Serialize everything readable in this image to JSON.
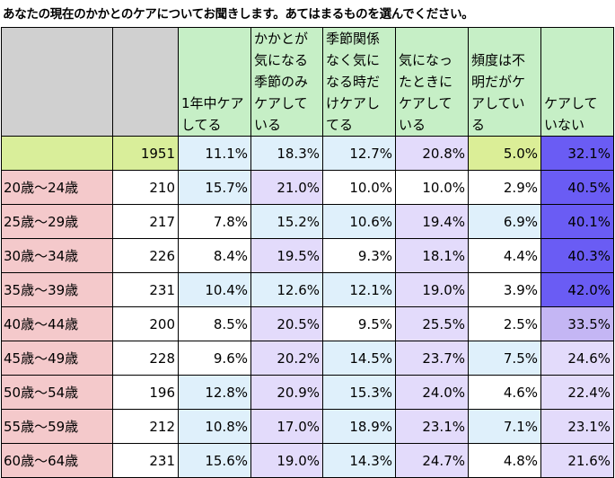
{
  "title": "あなたの現在のかかとのケアについてお聞きします。あてはまるものを選んでください。",
  "columns": [
    "",
    "",
    "1年中ケアしてる",
    "かかとが気になる季節のみケアしている",
    "季節関係なく気になる時だけケアしてる",
    "気になったときにケアしている",
    "頻度は不明だがケアしている",
    "ケアしていない"
  ],
  "colors": {
    "total_label": "#d9ee9a",
    "age_label": "#f4c9cb",
    "header_green": "#c6efc6",
    "light_blue": "#dff0fb",
    "light_purple": "#e3dbfb",
    "mid_purple": "#c4b6f4",
    "strong_purple": "#6a5cf4",
    "lime": "#dbee97",
    "white": "#ffffff"
  },
  "chart_data": {
    "type": "table",
    "title": "あなたの現在のかかとのケアについてお聞きします。あてはまるものを選んでください。",
    "rows": [
      {
        "label": "",
        "n": "1951",
        "values": [
          "11.1%",
          "18.3%",
          "12.7%",
          "20.8%",
          "5.0%",
          "32.1%"
        ]
      },
      {
        "label": "20歳～24歳",
        "n": "210",
        "values": [
          "15.7%",
          "21.0%",
          "10.0%",
          "10.0%",
          "2.9%",
          "40.5%"
        ]
      },
      {
        "label": "25歳～29歳",
        "n": "217",
        "values": [
          "7.8%",
          "15.2%",
          "10.6%",
          "19.4%",
          "6.9%",
          "40.1%"
        ]
      },
      {
        "label": "30歳～34歳",
        "n": "226",
        "values": [
          "8.4%",
          "19.5%",
          "9.3%",
          "18.1%",
          "4.4%",
          "40.3%"
        ]
      },
      {
        "label": "35歳～39歳",
        "n": "231",
        "values": [
          "10.4%",
          "12.6%",
          "12.1%",
          "19.0%",
          "3.9%",
          "42.0%"
        ]
      },
      {
        "label": "40歳～44歳",
        "n": "200",
        "values": [
          "8.5%",
          "20.5%",
          "9.5%",
          "25.5%",
          "2.5%",
          "33.5%"
        ]
      },
      {
        "label": "45歳～49歳",
        "n": "228",
        "values": [
          "9.6%",
          "20.2%",
          "14.5%",
          "23.7%",
          "7.5%",
          "24.6%"
        ]
      },
      {
        "label": "50歳～54歳",
        "n": "196",
        "values": [
          "12.8%",
          "20.9%",
          "15.3%",
          "24.0%",
          "4.6%",
          "22.4%"
        ]
      },
      {
        "label": "55歳～59歳",
        "n": "212",
        "values": [
          "10.8%",
          "17.0%",
          "18.9%",
          "23.1%",
          "7.1%",
          "23.1%"
        ]
      },
      {
        "label": "60歳～64歳",
        "n": "231",
        "values": [
          "15.6%",
          "19.0%",
          "14.3%",
          "24.7%",
          "4.8%",
          "21.6%"
        ]
      }
    ],
    "cell_colors": [
      [
        "light_blue",
        "light_blue",
        "light_blue",
        "light_purple",
        "lime",
        "strong_purple"
      ],
      [
        "light_blue",
        "light_purple",
        "white",
        "white",
        "white",
        "strong_purple"
      ],
      [
        "white",
        "light_blue",
        "light_blue",
        "light_purple",
        "light_blue",
        "strong_purple"
      ],
      [
        "white",
        "light_purple",
        "white",
        "light_purple",
        "white",
        "strong_purple"
      ],
      [
        "light_blue",
        "light_blue",
        "light_blue",
        "light_purple",
        "white",
        "strong_purple"
      ],
      [
        "white",
        "light_purple",
        "white",
        "light_purple",
        "white",
        "mid_purple"
      ],
      [
        "white",
        "light_purple",
        "light_blue",
        "light_purple",
        "light_blue",
        "light_purple"
      ],
      [
        "light_blue",
        "light_purple",
        "light_blue",
        "light_purple",
        "white",
        "light_purple"
      ],
      [
        "light_blue",
        "light_purple",
        "light_blue",
        "light_purple",
        "light_blue",
        "light_purple"
      ],
      [
        "light_blue",
        "light_purple",
        "light_blue",
        "light_purple",
        "white",
        "light_purple"
      ]
    ]
  }
}
